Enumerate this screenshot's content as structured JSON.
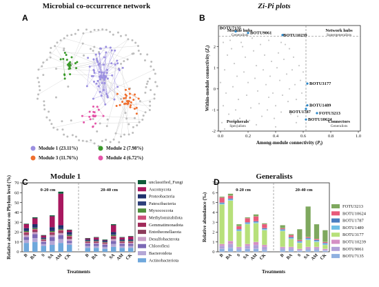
{
  "panels": {
    "a": {
      "letter": "A",
      "title": "Microbial co-occurrence network"
    },
    "b": {
      "letter": "B",
      "title": "Zi-Pi plots"
    },
    "c": {
      "letter": "C",
      "title": "Module 1"
    },
    "d": {
      "letter": "D",
      "title": "Generalists"
    }
  },
  "network": {
    "modules": [
      {
        "label": "Module 1 (23.11%)",
        "color": "#9b8fe0"
      },
      {
        "label": "Module 2 (7.98%)",
        "color": "#3a9a2a"
      },
      {
        "label": "Module 3 (11.76%)",
        "color": "#ef6f2e"
      },
      {
        "label": "Module 4 (6.72%)",
        "color": "#e454a8"
      }
    ],
    "other_color": "#bdbdbd"
  },
  "chart_data": [
    {
      "type": "scatter",
      "panel": "B",
      "xlabel": "Among-module connectivity (Pi)",
      "ylabel": "Within-module connectivity (Zi)",
      "xlim": [
        0,
        1.0
      ],
      "ylim": [
        -2,
        3
      ],
      "xticks": [
        "0.0",
        "0.2",
        "0.4",
        "0.6",
        "0.8",
        "1.0"
      ],
      "yticks": [
        "-2",
        "-1",
        "0",
        "1",
        "2"
      ],
      "thresholds": {
        "x": 0.62,
        "y": 2.5
      },
      "quadrants": [
        {
          "name": "Module hubs",
          "sub": "Generalists",
          "pos": "top-left"
        },
        {
          "name": "Network hubs",
          "sub": "Supergeneralists",
          "pos": "top-right"
        },
        {
          "name": "Peripherals",
          "sub": "Specialists",
          "pos": "bottom-left"
        },
        {
          "name": "Connectors",
          "sub": "Generalists",
          "pos": "bottom-right"
        }
      ],
      "highlighted": [
        {
          "label": "BOTU7135",
          "x": 0.11,
          "y": 2.72
        },
        {
          "label": "BOTU9061",
          "x": 0.2,
          "y": 2.65
        },
        {
          "label": "BOTU10239",
          "x": 0.45,
          "y": 2.55
        },
        {
          "label": "BOTU3177",
          "x": 0.63,
          "y": 0.25
        },
        {
          "label": "BOTU1489",
          "x": 0.63,
          "y": -0.78
        },
        {
          "label": "BOTU1787",
          "x": 0.62,
          "y": -0.95
        },
        {
          "label": "FOTU3213",
          "x": 0.7,
          "y": -1.15
        },
        {
          "label": "BOTU10624",
          "x": 0.62,
          "y": -1.45
        }
      ],
      "points": [
        [
          0.02,
          2.2
        ],
        [
          0.05,
          1.6
        ],
        [
          0.03,
          0.9
        ],
        [
          0.0,
          0.3
        ],
        [
          0.04,
          -0.2
        ],
        [
          0.02,
          -0.8
        ],
        [
          0.06,
          -1.2
        ],
        [
          0.01,
          -1.6
        ],
        [
          0.08,
          1.9
        ],
        [
          0.1,
          1.2
        ],
        [
          0.12,
          0.6
        ],
        [
          0.09,
          0.1
        ],
        [
          0.13,
          -0.5
        ],
        [
          0.11,
          -1.0
        ],
        [
          0.14,
          -1.4
        ],
        [
          0.16,
          2.0
        ],
        [
          0.18,
          1.5
        ],
        [
          0.17,
          0.8
        ],
        [
          0.2,
          0.3
        ],
        [
          0.19,
          -0.3
        ],
        [
          0.22,
          -0.9
        ],
        [
          0.21,
          -1.5
        ],
        [
          0.24,
          1.8
        ],
        [
          0.26,
          1.1
        ],
        [
          0.25,
          0.5
        ],
        [
          0.27,
          -0.1
        ],
        [
          0.28,
          -0.7
        ],
        [
          0.3,
          -1.3
        ],
        [
          0.32,
          1.6
        ],
        [
          0.31,
          0.9
        ],
        [
          0.33,
          0.2
        ],
        [
          0.35,
          -0.4
        ],
        [
          0.34,
          -1.0
        ],
        [
          0.37,
          1.3
        ],
        [
          0.36,
          0.6
        ],
        [
          0.38,
          -0.2
        ],
        [
          0.4,
          -0.8
        ],
        [
          0.39,
          -1.4
        ],
        [
          0.42,
          1.7
        ],
        [
          0.41,
          1.0
        ],
        [
          0.43,
          0.4
        ],
        [
          0.45,
          -0.3
        ],
        [
          0.44,
          -1.1
        ],
        [
          0.47,
          2.1
        ],
        [
          0.46,
          1.4
        ],
        [
          0.48,
          0.7
        ],
        [
          0.5,
          0.0
        ],
        [
          0.49,
          -0.6
        ],
        [
          0.51,
          -1.2
        ],
        [
          0.53,
          1.5
        ],
        [
          0.52,
          0.9
        ],
        [
          0.54,
          0.2
        ],
        [
          0.55,
          -0.5
        ],
        [
          0.56,
          -1.3
        ],
        [
          0.57,
          1.1
        ],
        [
          0.58,
          0.4
        ],
        [
          0.59,
          -0.2
        ],
        [
          0.07,
          2.3
        ],
        [
          0.15,
          2.2
        ],
        [
          0.23,
          2.4
        ],
        [
          0.29,
          2.1
        ],
        [
          0.35,
          2.3
        ],
        [
          0.44,
          2.2
        ],
        [
          0.5,
          1.9
        ],
        [
          0.03,
          -1.9
        ],
        [
          0.12,
          -1.8
        ],
        [
          0.26,
          -1.7
        ],
        [
          0.4,
          -1.8
        ],
        [
          0.55,
          -1.6
        ],
        [
          0.6,
          0.8
        ]
      ]
    },
    {
      "type": "bar",
      "panel": "C",
      "stacked": true,
      "ylabel": "Relative abundance on Phylum level (%)",
      "xlabel": "Treatments",
      "ylim": [
        0,
        70
      ],
      "yticks": [
        "0",
        "10",
        "20",
        "30",
        "40",
        "50",
        "60",
        "70"
      ],
      "groups": [
        "0-20 cm",
        "20-40 cm"
      ],
      "categories": [
        "B",
        "BA",
        "S",
        "SA",
        "AM",
        "CK",
        "B",
        "BA",
        "S",
        "SA",
        "AM",
        "CK"
      ],
      "series": [
        {
          "name": "Actinobacteriota",
          "color": "#6fa8dc",
          "values": [
            9,
            10,
            6,
            7,
            9,
            7,
            4,
            4,
            3,
            5,
            4,
            4
          ]
        },
        {
          "name": "Bacteroidota",
          "color": "#b4a7d6",
          "values": [
            3,
            4,
            2,
            4,
            4,
            2,
            2,
            2,
            2,
            3,
            2,
            2
          ]
        },
        {
          "name": "Chloroflexi",
          "color": "#7b68b5",
          "values": [
            3,
            4,
            2,
            4,
            4,
            2,
            2,
            2,
            2,
            3,
            2,
            2
          ]
        },
        {
          "name": "Desulfobacterota",
          "color": "#c9a0c8",
          "values": [
            2,
            2,
            1,
            2,
            2,
            2,
            1,
            1,
            1,
            2,
            1,
            1
          ]
        },
        {
          "name": "Entotheonellaeota",
          "color": "#8c3b5a",
          "values": [
            1,
            1,
            0.5,
            1,
            1,
            1,
            0.5,
            0.5,
            0.5,
            1,
            0.5,
            0.5
          ]
        },
        {
          "name": "Gemmatimonadota",
          "color": "#a02858",
          "values": [
            1,
            1,
            0.5,
            1,
            1,
            1,
            0.5,
            0.5,
            0.5,
            1,
            0.5,
            0.5
          ]
        },
        {
          "name": "Methylomirabilota",
          "color": "#cc4e7a",
          "values": [
            1,
            1,
            0.5,
            1,
            1,
            1,
            0.5,
            0.5,
            0.5,
            1,
            0.5,
            0.5
          ]
        },
        {
          "name": "Myxococcota",
          "color": "#4f8f3c",
          "values": [
            1,
            1,
            0.5,
            1,
            1,
            1,
            0.5,
            0.5,
            0.5,
            1,
            0.5,
            0.5
          ]
        },
        {
          "name": "Patescibacteria",
          "color": "#2d3f7a",
          "values": [
            1,
            1,
            0.5,
            1,
            1,
            1,
            0.5,
            0.5,
            0.5,
            1,
            0.5,
            0.5
          ]
        },
        {
          "name": "Proteobacteria",
          "color": "#1f2f6b",
          "values": [
            2,
            3,
            1,
            3,
            3,
            2,
            1,
            1,
            1,
            2,
            1,
            1
          ]
        },
        {
          "name": "Ascomycota",
          "color": "#a8185f",
          "values": [
            4,
            6,
            2,
            11,
            32,
            2,
            1,
            2,
            0.5,
            7,
            2,
            3
          ]
        },
        {
          "name": "unclassified_Fungi",
          "color": "#0f5b3a",
          "values": [
            0.5,
            1,
            0.5,
            1,
            2,
            0.5,
            0.5,
            0.5,
            0.5,
            1,
            0.5,
            0.5
          ]
        }
      ]
    },
    {
      "type": "bar",
      "panel": "D",
      "stacked": true,
      "ylabel": "Relative abundance (‰)",
      "xlabel": "Treatments",
      "ylim": [
        0,
        7
      ],
      "yticks": [
        "0",
        "1",
        "2",
        "3",
        "4",
        "5",
        "6",
        "7"
      ],
      "groups": [
        "0-20 cm",
        "20-40 cm"
      ],
      "categories": [
        "B",
        "BA",
        "S",
        "SA",
        "AM",
        "CK",
        "B",
        "BA",
        "S",
        "SA",
        "AM",
        "CK"
      ],
      "series": [
        {
          "name": "BOTU7135",
          "color": "#8fb0e0",
          "values": [
            0.3,
            0.4,
            0.2,
            0.3,
            0.3,
            0.2,
            0.2,
            0.2,
            0.1,
            0.2,
            0.2,
            0.1
          ]
        },
        {
          "name": "BOTU9061",
          "color": "#b0a0d8",
          "values": [
            0.3,
            0.4,
            0.2,
            0.3,
            0.4,
            0.3,
            0.2,
            0.2,
            0.1,
            0.2,
            0.2,
            0.1
          ]
        },
        {
          "name": "BOTU10239",
          "color": "#d58fc4",
          "values": [
            0.2,
            0.3,
            0.1,
            0.2,
            0.3,
            0.2,
            0.1,
            0.1,
            0.1,
            0.1,
            0.1,
            0.1
          ]
        },
        {
          "name": "BOTU3177",
          "color": "#b7e07a",
          "values": [
            4.0,
            4.1,
            1.6,
            2.0,
            1.9,
            1.5,
            1.6,
            0.8,
            0.6,
            0.7,
            0.5,
            0.4
          ]
        },
        {
          "name": "BOTU1489",
          "color": "#6fbfe6",
          "values": [
            0.1,
            0.1,
            0.1,
            0.1,
            0.1,
            0.1,
            0.1,
            0.1,
            0.1,
            0.1,
            0.1,
            0.1
          ]
        },
        {
          "name": "BOTU1787",
          "color": "#4a7ec0",
          "values": [
            0.1,
            0.1,
            0.1,
            0.1,
            0.1,
            0.1,
            0.1,
            0.1,
            0.1,
            0.1,
            0.1,
            0.1
          ]
        },
        {
          "name": "BOTU10624",
          "color": "#e85a7a",
          "values": [
            0.5,
            0.3,
            0.3,
            0.4,
            0.5,
            0.4,
            0.1,
            0.2,
            0.1,
            0.1,
            0.1,
            0.1
          ]
        },
        {
          "name": "FOTU3213",
          "color": "#7ea85e",
          "values": [
            0.1,
            0.2,
            0.2,
            0.1,
            0.2,
            0.1,
            0.3,
            0.1,
            1.1,
            3.1,
            1.5,
            1.2
          ]
        }
      ]
    }
  ]
}
